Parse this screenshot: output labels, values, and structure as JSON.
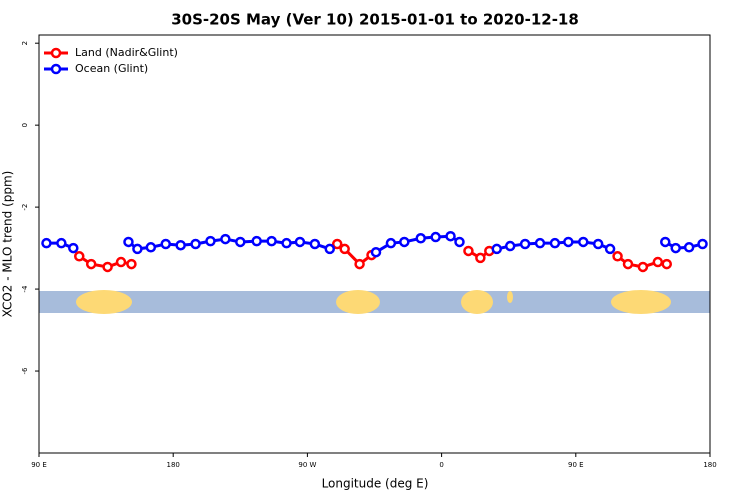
{
  "chart_data": {
    "type": "line",
    "title": "30S-20S May (Ver 10)   2015-01-01 to 2020-12-18",
    "x_label": "Longitude (deg E)",
    "y_label": "XCO2 - MLO trend (ppm)",
    "xlim": [
      90,
      540
    ],
    "ylim": [
      -8,
      2.2
    ],
    "xticks": [
      {
        "value": 90,
        "label": "90 E"
      },
      {
        "value": 180,
        "label": "180"
      },
      {
        "value": 270,
        "label": "90 W"
      },
      {
        "value": 360,
        "label": "0"
      },
      {
        "value": 450,
        "label": "90 E"
      },
      {
        "value": 540,
        "label": "180"
      }
    ],
    "yticks": [
      2,
      0,
      -2,
      -4,
      -6
    ],
    "legend": "top-left",
    "series": [
      {
        "name": "Land (Nadir&Glint)",
        "color": "#ff0000",
        "x": [
          117,
          125,
          136,
          145,
          152,
          null,
          290,
          295,
          305,
          313,
          null,
          378,
          386,
          392,
          null,
          478,
          485,
          495,
          505,
          511
        ],
        "values": [
          -3.2,
          -3.39,
          -3.46,
          -3.34,
          -3.39,
          null,
          -2.9,
          -3.02,
          -3.39,
          -3.17,
          null,
          -3.07,
          -3.24,
          -3.07,
          null,
          -3.2,
          -3.39,
          -3.46,
          -3.34,
          -3.39
        ]
      },
      {
        "name": "Ocean (Glint)",
        "color": "#0000ff",
        "x": [
          95,
          105,
          113,
          null,
          150,
          156,
          165,
          175,
          185,
          195,
          205,
          215,
          225,
          236,
          246,
          256,
          265,
          275,
          285,
          null,
          316,
          326,
          335,
          346,
          356,
          366,
          372,
          null,
          397,
          406,
          416,
          426,
          436,
          445,
          455,
          465,
          473,
          null,
          510,
          517,
          526,
          535
        ],
        "values": [
          -2.88,
          -2.88,
          -3.0,
          null,
          -2.85,
          -3.02,
          -2.98,
          -2.9,
          -2.93,
          -2.9,
          -2.83,
          -2.78,
          -2.85,
          -2.83,
          -2.83,
          -2.88,
          -2.85,
          -2.9,
          -3.02,
          null,
          -3.1,
          -2.88,
          -2.85,
          -2.76,
          -2.73,
          -2.71,
          -2.85,
          null,
          -3.02,
          -2.95,
          -2.9,
          -2.88,
          -2.88,
          -2.85,
          -2.85,
          -2.9,
          -3.02,
          null,
          -2.85,
          -3.0,
          -2.98,
          -2.9
        ]
      }
    ]
  }
}
